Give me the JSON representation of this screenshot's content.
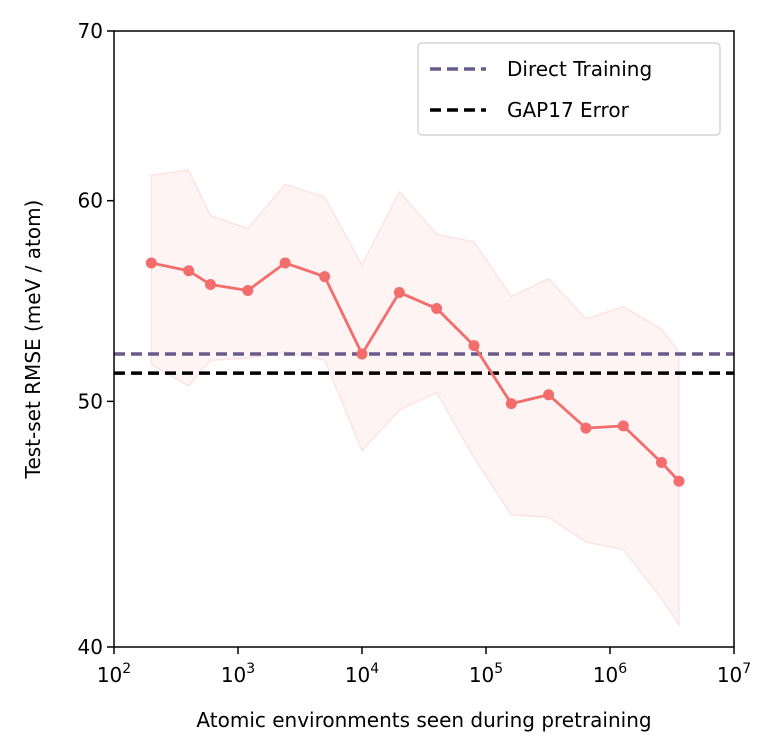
{
  "chart_data": {
    "type": "line",
    "xlabel": "Atomic environments seen during pretraining",
    "ylabel": "Test-set RMSE (meV / atom)",
    "x_scale": "log",
    "y_scale": "log",
    "xlim": [
      100,
      10000000
    ],
    "ylim": [
      40,
      70
    ],
    "x_ticks": [
      {
        "value": 100,
        "base": "10",
        "exp": "2"
      },
      {
        "value": 1000,
        "base": "10",
        "exp": "3"
      },
      {
        "value": 10000,
        "base": "10",
        "exp": "4"
      },
      {
        "value": 100000,
        "base": "10",
        "exp": "5"
      },
      {
        "value": 1000000,
        "base": "10",
        "exp": "6"
      },
      {
        "value": 10000000,
        "base": "10",
        "exp": "7"
      }
    ],
    "y_ticks": [
      {
        "value": 40,
        "label": "40"
      },
      {
        "value": 50,
        "label": "50"
      },
      {
        "value": 60,
        "label": "60"
      },
      {
        "value": 70,
        "label": "70"
      }
    ],
    "grid": false,
    "legend_position": "top-right",
    "series": [
      {
        "color": "#f46d6d",
        "x": [
          200,
          400,
          600,
          1200,
          2400,
          5000,
          10000,
          20000,
          40000,
          80000,
          160000,
          320000,
          640000,
          1280000,
          2600000,
          3600000
        ],
        "y": [
          56.7,
          56.3,
          55.6,
          55.3,
          56.7,
          56.0,
          52.2,
          55.2,
          54.4,
          52.6,
          49.9,
          50.3,
          48.8,
          48.9,
          47.3,
          46.5
        ],
        "band_upper": [
          61.4,
          61.7,
          59.2,
          58.5,
          60.9,
          60.2,
          56.6,
          60.5,
          58.2,
          57.8,
          55.0,
          55.9,
          53.9,
          54.5,
          53.4,
          52.3
        ],
        "band_lower": [
          51.7,
          50.7,
          51.9,
          52.0,
          52.3,
          51.9,
          47.8,
          49.6,
          50.4,
          47.5,
          45.1,
          45.0,
          44.0,
          43.7,
          41.8,
          40.8
        ]
      }
    ],
    "reference_lines": [
      {
        "name": "Direct Training",
        "y": 52.2,
        "color": "#6a5a8c",
        "style": "dashed"
      },
      {
        "name": "GAP17 Error",
        "y": 51.3,
        "color": "#000000",
        "style": "dashed"
      }
    ]
  }
}
